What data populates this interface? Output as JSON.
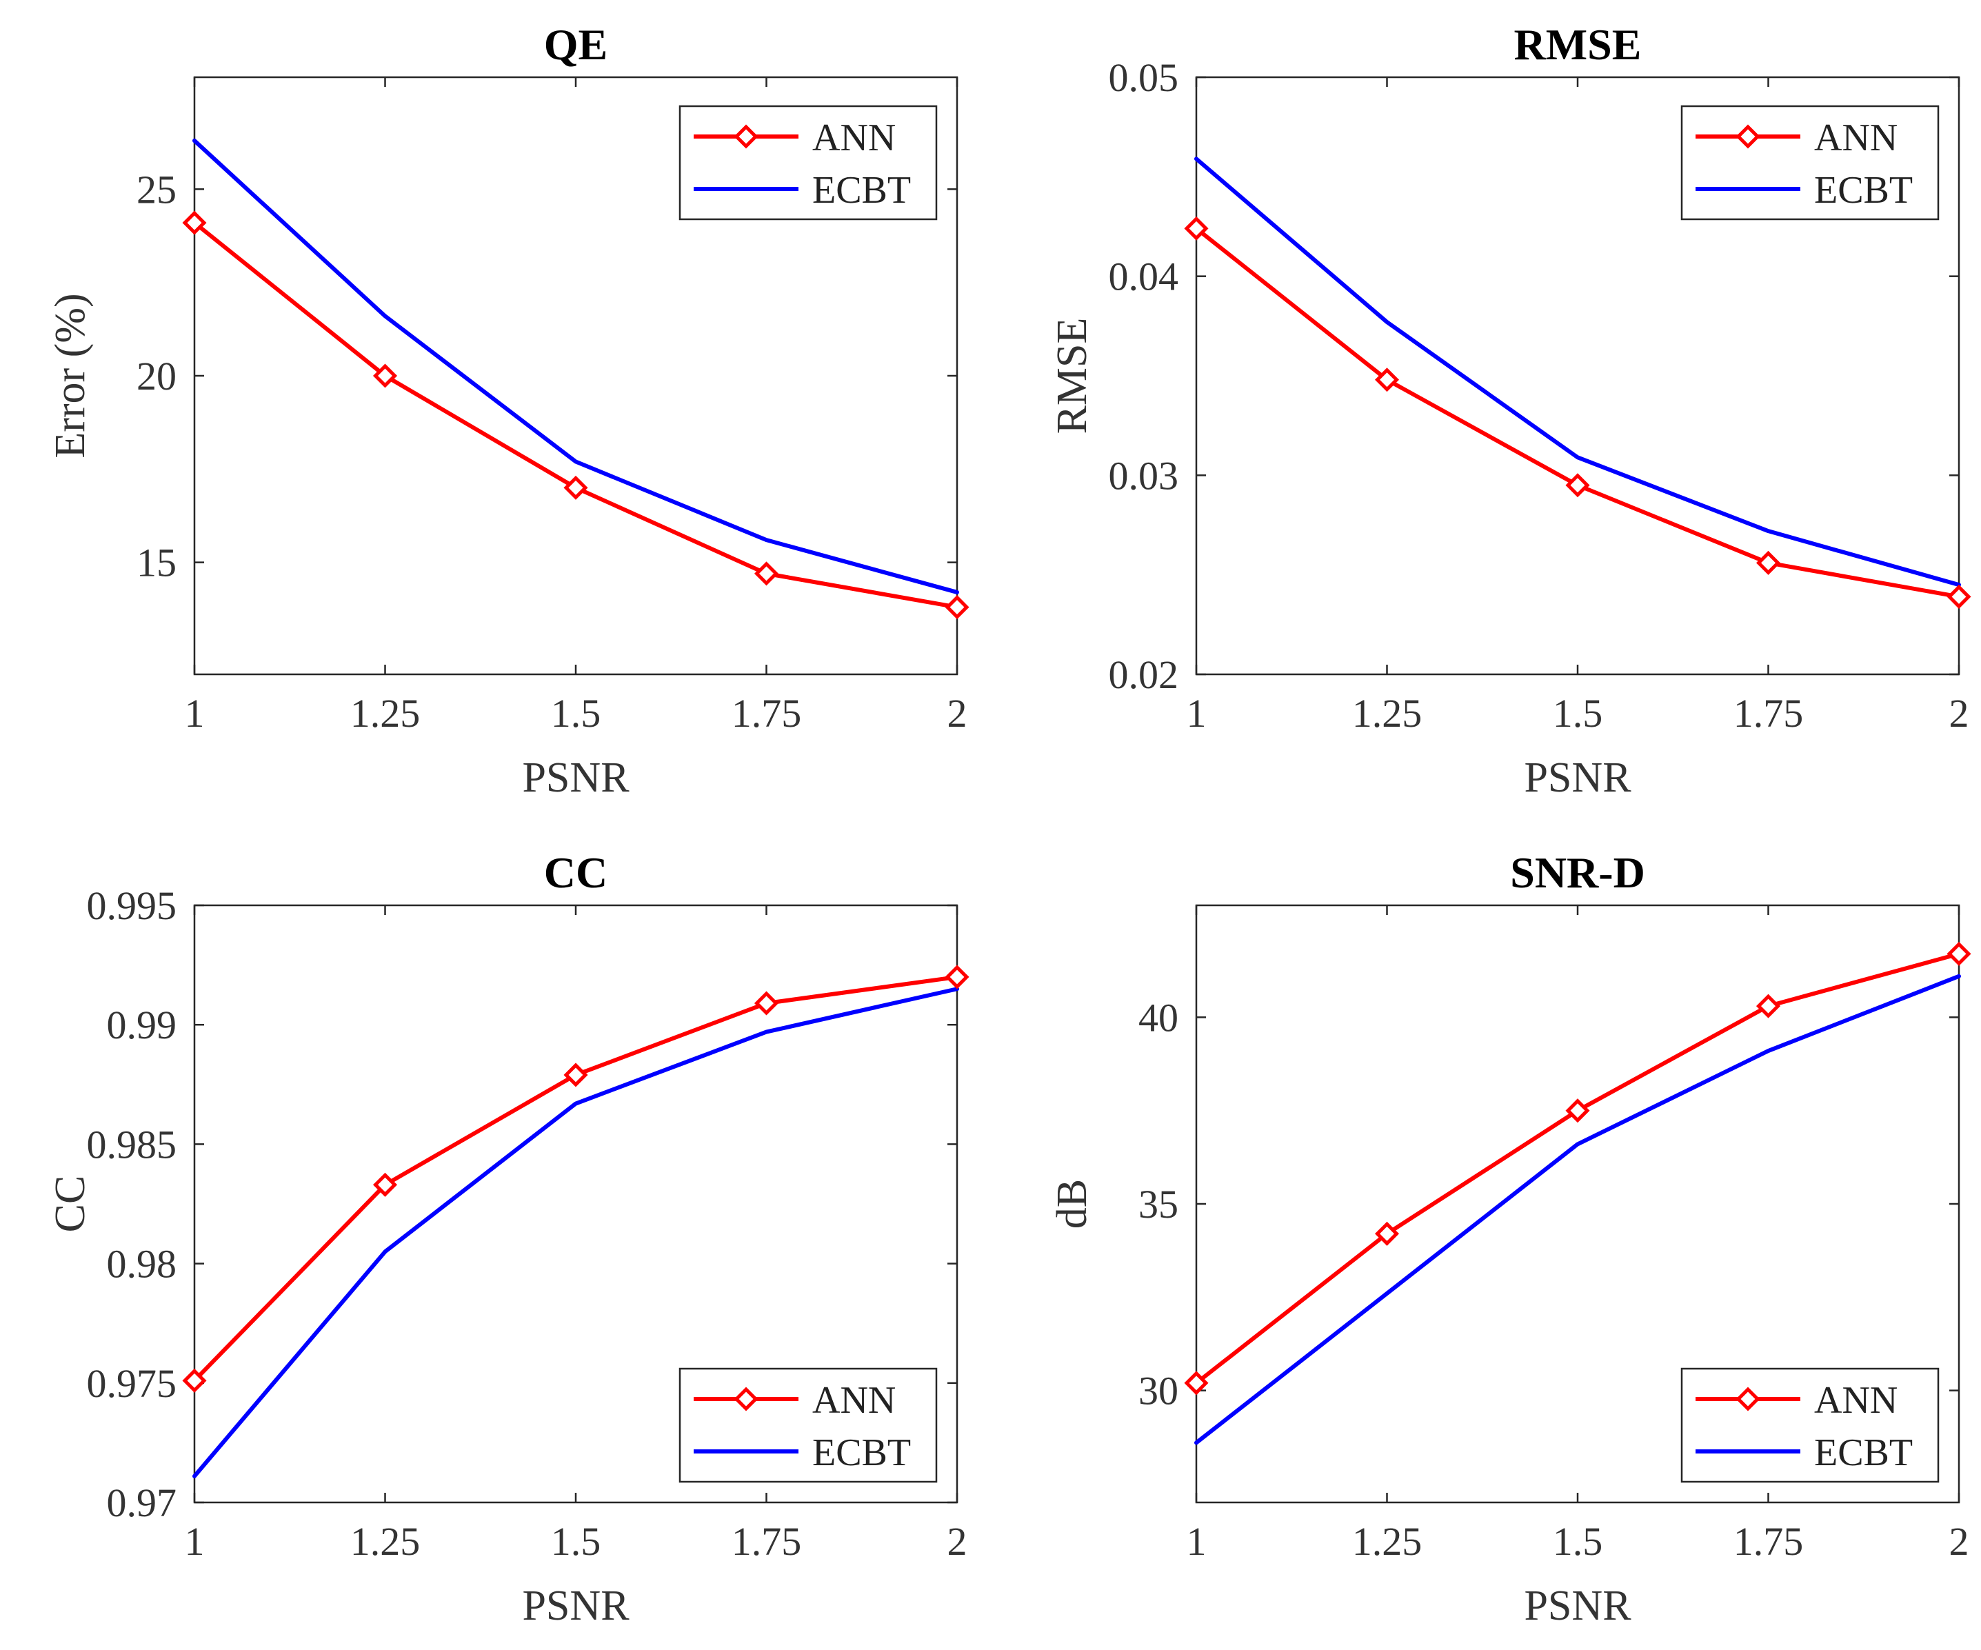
{
  "colors": {
    "ann": "#ff0000",
    "ecbt": "#0000ff",
    "axis": "#262626"
  },
  "chart_data": [
    {
      "id": "qe",
      "type": "line",
      "title": "QE",
      "xlabel": "PSNR",
      "ylabel": "Error (%)",
      "x": [
        1,
        1.25,
        1.5,
        1.75,
        2
      ],
      "x_tick_labels": [
        "1",
        "1.25",
        "1.5",
        "1.75",
        "2"
      ],
      "xlim": [
        1,
        2
      ],
      "ylim": [
        12,
        28
      ],
      "yticks": [
        15,
        20,
        25
      ],
      "y_tick_labels": [
        "15",
        "20",
        "25"
      ],
      "legend_position": "top-right",
      "series": [
        {
          "name": "ANN",
          "color": "#ff0000",
          "marker": "diamond",
          "values": [
            24.1,
            20.0,
            17.0,
            14.7,
            13.8
          ]
        },
        {
          "name": "ECBT",
          "color": "#0000ff",
          "marker": "none",
          "values": [
            26.3,
            21.6,
            17.7,
            15.6,
            14.2
          ]
        }
      ]
    },
    {
      "id": "rmse",
      "type": "line",
      "title": "RMSE",
      "xlabel": "PSNR",
      "ylabel": "RMSE",
      "x": [
        1,
        1.25,
        1.5,
        1.75,
        2
      ],
      "x_tick_labels": [
        "1",
        "1.25",
        "1.5",
        "1.75",
        "2"
      ],
      "xlim": [
        1,
        2
      ],
      "ylim": [
        0.02,
        0.05
      ],
      "yticks": [
        0.02,
        0.03,
        0.04,
        0.05
      ],
      "y_tick_labels": [
        "0.02",
        "0.03",
        "0.04",
        "0.05"
      ],
      "legend_position": "top-right",
      "series": [
        {
          "name": "ANN",
          "color": "#ff0000",
          "marker": "diamond",
          "values": [
            0.0424,
            0.0348,
            0.0295,
            0.0256,
            0.0239
          ]
        },
        {
          "name": "ECBT",
          "color": "#0000ff",
          "marker": "none",
          "values": [
            0.0459,
            0.0377,
            0.0309,
            0.0272,
            0.0245
          ]
        }
      ]
    },
    {
      "id": "cc",
      "type": "line",
      "title": "CC",
      "xlabel": "PSNR",
      "ylabel": "CC",
      "x": [
        1,
        1.25,
        1.5,
        1.75,
        2
      ],
      "x_tick_labels": [
        "1",
        "1.25",
        "1.5",
        "1.75",
        "2"
      ],
      "xlim": [
        1,
        2
      ],
      "ylim": [
        0.97,
        0.995
      ],
      "yticks": [
        0.97,
        0.975,
        0.98,
        0.985,
        0.99,
        0.995
      ],
      "y_tick_labels": [
        "0.97",
        "0.975",
        "0.98",
        "0.985",
        "0.99",
        "0.995"
      ],
      "legend_position": "bottom-right",
      "series": [
        {
          "name": "ANN",
          "color": "#ff0000",
          "marker": "diamond",
          "values": [
            0.9751,
            0.9833,
            0.9879,
            0.9909,
            0.992
          ]
        },
        {
          "name": "ECBT",
          "color": "#0000ff",
          "marker": "none",
          "values": [
            0.9711,
            0.9805,
            0.9867,
            0.9897,
            0.9915
          ]
        }
      ]
    },
    {
      "id": "snrd",
      "type": "line",
      "title": "SNR-D",
      "xlabel": "PSNR",
      "ylabel": "dB",
      "x": [
        1,
        1.25,
        1.5,
        1.75,
        2
      ],
      "x_tick_labels": [
        "1",
        "1.25",
        "1.5",
        "1.75",
        "2"
      ],
      "xlim": [
        1,
        2
      ],
      "ylim": [
        27,
        43
      ],
      "yticks": [
        30,
        35,
        40
      ],
      "y_tick_labels": [
        "30",
        "35",
        "40"
      ],
      "legend_position": "bottom-right",
      "series": [
        {
          "name": "ANN",
          "color": "#ff0000",
          "marker": "diamond",
          "values": [
            30.2,
            34.2,
            37.5,
            40.3,
            41.7
          ]
        },
        {
          "name": "ECBT",
          "color": "#0000ff",
          "marker": "none",
          "values": [
            28.6,
            32.6,
            36.6,
            39.1,
            41.1
          ]
        }
      ]
    }
  ]
}
